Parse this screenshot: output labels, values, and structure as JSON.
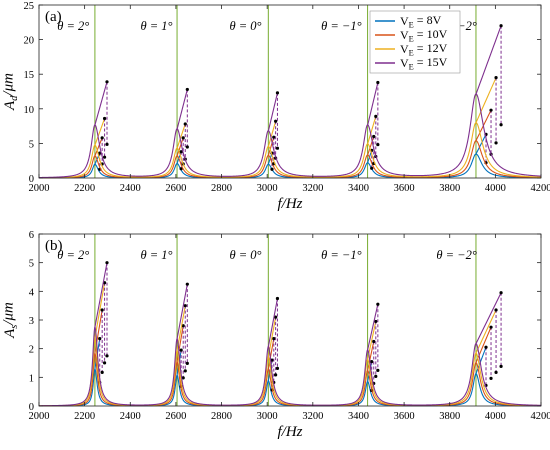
{
  "chart_data": [
    {
      "type": "line",
      "panel_label": "(a)",
      "xlabel": "f/Hz",
      "ylabel": "A_d/μm",
      "xlim": [
        2000,
        4200
      ],
      "ylim": [
        0,
        25
      ],
      "xticks": [
        2000,
        2200,
        2400,
        2600,
        2800,
        3000,
        3200,
        3400,
        3600,
        3800,
        4000,
        4200
      ],
      "yticks": [
        0,
        5,
        10,
        15,
        20,
        25
      ],
      "grid": false,
      "legend_position": "top-right",
      "vertical_markers": [
        2245,
        2605,
        3005,
        3440,
        3915
      ],
      "annotations": [
        "θ = 2°",
        "θ = 1°",
        "θ = 0°",
        "θ = −1°",
        "θ = −2°"
      ],
      "peaks": [
        {
          "f0": 2245,
          "jump_top": 2298,
          "jump_bottom": 2275,
          "heights": [
            3.6,
            5.8,
            8.6,
            13.9
          ],
          "widths": [
            14,
            16,
            18,
            20
          ]
        },
        {
          "f0": 2605,
          "jump_top": 2650,
          "jump_bottom": 2625,
          "heights": [
            3.8,
            5.8,
            7.8,
            12.8
          ],
          "widths": [
            15,
            17,
            19,
            21
          ]
        },
        {
          "f0": 3005,
          "jump_top": 3045,
          "jump_bottom": 3025,
          "heights": [
            3.6,
            5.9,
            8.2,
            12.3
          ],
          "widths": [
            16,
            18,
            20,
            22
          ]
        },
        {
          "f0": 3440,
          "jump_top": 3485,
          "jump_bottom": 3460,
          "heights": [
            4.0,
            6.0,
            8.9,
            13.8
          ],
          "widths": [
            17,
            19,
            21,
            23
          ]
        },
        {
          "f0": 3915,
          "jump_top": 4025,
          "jump_bottom": 3945,
          "heights": [
            6.3,
            9.8,
            14.5,
            22.0
          ],
          "widths": [
            24,
            26,
            28,
            32
          ]
        }
      ],
      "series": [
        {
          "name": "V_E = 8V",
          "color": "#0072BD"
        },
        {
          "name": "V_E = 10V",
          "color": "#D95319"
        },
        {
          "name": "V_E = 12V",
          "color": "#EDB120"
        },
        {
          "name": "V_E = 15V",
          "color": "#7E2F8E"
        }
      ]
    },
    {
      "type": "line",
      "panel_label": "(b)",
      "xlabel": "f/Hz",
      "ylabel": "A_s/μm",
      "xlim": [
        2000,
        4200
      ],
      "ylim": [
        0,
        6
      ],
      "xticks": [
        2000,
        2200,
        2400,
        2600,
        2800,
        3000,
        3200,
        3400,
        3600,
        3800,
        4000,
        4200
      ],
      "yticks": [
        0,
        1,
        2,
        3,
        4,
        5,
        6
      ],
      "grid": false,
      "vertical_markers": [
        2245,
        2605,
        3005,
        3440,
        3915
      ],
      "annotations": [
        "θ = 2°",
        "θ = 1°",
        "θ = 0°",
        "θ = −1°",
        "θ = −2°"
      ],
      "peaks": [
        {
          "f0": 2245,
          "jump_top": 2298,
          "jump_bottom": 2275,
          "heights": [
            2.35,
            3.35,
            4.3,
            5.0
          ],
          "widths": [
            9,
            10,
            11,
            12
          ]
        },
        {
          "f0": 2605,
          "jump_top": 2650,
          "jump_bottom": 2625,
          "heights": [
            1.95,
            2.8,
            3.5,
            4.25
          ],
          "widths": [
            10,
            11,
            12,
            13
          ]
        },
        {
          "f0": 3005,
          "jump_top": 3045,
          "jump_bottom": 3025,
          "heights": [
            1.6,
            2.35,
            3.1,
            3.75
          ],
          "widths": [
            11,
            12,
            13,
            14
          ]
        },
        {
          "f0": 3440,
          "jump_top": 3485,
          "jump_bottom": 3460,
          "heights": [
            1.55,
            2.25,
            2.95,
            3.55
          ],
          "widths": [
            12,
            13,
            14,
            15
          ]
        },
        {
          "f0": 3915,
          "jump_top": 4025,
          "jump_bottom": 3945,
          "heights": [
            2.05,
            2.75,
            3.35,
            3.95
          ],
          "widths": [
            16,
            18,
            20,
            22
          ]
        }
      ],
      "series": [
        {
          "name": "V_E = 8V",
          "color": "#0072BD"
        },
        {
          "name": "V_E = 10V",
          "color": "#D95319"
        },
        {
          "name": "V_E = 12V",
          "color": "#EDB120"
        },
        {
          "name": "V_E = 15V",
          "color": "#7E2F8E"
        }
      ]
    }
  ],
  "colors": {
    "marker_line": "#77AC30",
    "axis": "#222222",
    "jump": "#7E2F8E"
  }
}
